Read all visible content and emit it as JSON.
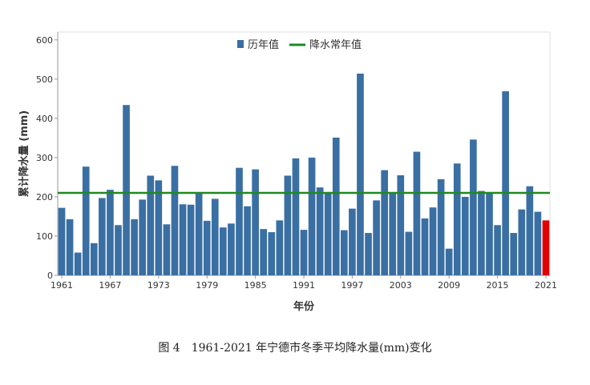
{
  "caption": "图 4　1961-2021 年宁德市冬季平均降水量(mm)变化",
  "chart_data": {
    "type": "bar",
    "title": "",
    "xlabel": "年份",
    "ylabel": "累计降水量 (mm)",
    "ylim": [
      0,
      620
    ],
    "yticks": [
      0,
      100,
      200,
      300,
      400,
      500,
      600
    ],
    "xtick_labels": [
      "1961",
      "1967",
      "1973",
      "1979",
      "1985",
      "1991",
      "1997",
      "2003",
      "2009",
      "2015",
      "2021"
    ],
    "legend_position": "top-center",
    "grid": false,
    "categories": [
      "1961",
      "1962",
      "1963",
      "1964",
      "1965",
      "1966",
      "1967",
      "1968",
      "1969",
      "1970",
      "1971",
      "1972",
      "1973",
      "1974",
      "1975",
      "1976",
      "1977",
      "1978",
      "1979",
      "1980",
      "1981",
      "1982",
      "1983",
      "1984",
      "1985",
      "1986",
      "1987",
      "1988",
      "1989",
      "1990",
      "1991",
      "1992",
      "1993",
      "1994",
      "1995",
      "1996",
      "1997",
      "1998",
      "1999",
      "2000",
      "2001",
      "2002",
      "2003",
      "2004",
      "2005",
      "2006",
      "2007",
      "2008",
      "2009",
      "2010",
      "2011",
      "2012",
      "2013",
      "2014",
      "2015",
      "2016",
      "2017",
      "2018",
      "2019",
      "2020",
      "2021"
    ],
    "series": [
      {
        "name": "历年值",
        "color": "#3a6fa3",
        "highlight_color": "#e00000",
        "highlight_category": "2021",
        "values": [
          172,
          143,
          58,
          277,
          82,
          197,
          218,
          128,
          434,
          143,
          193,
          254,
          242,
          130,
          279,
          181,
          180,
          212,
          139,
          195,
          122,
          132,
          274,
          176,
          270,
          118,
          110,
          140,
          254,
          298,
          116,
          300,
          224,
          210,
          351,
          115,
          170,
          514,
          108,
          191,
          268,
          210,
          255,
          111,
          315,
          145,
          173,
          245,
          68,
          285,
          200,
          346,
          215,
          210,
          128,
          469,
          108,
          168,
          227,
          162,
          140
        ]
      },
      {
        "name": "降水常年值",
        "type": "line",
        "color": "#1f8a1f",
        "value": 210
      }
    ]
  }
}
